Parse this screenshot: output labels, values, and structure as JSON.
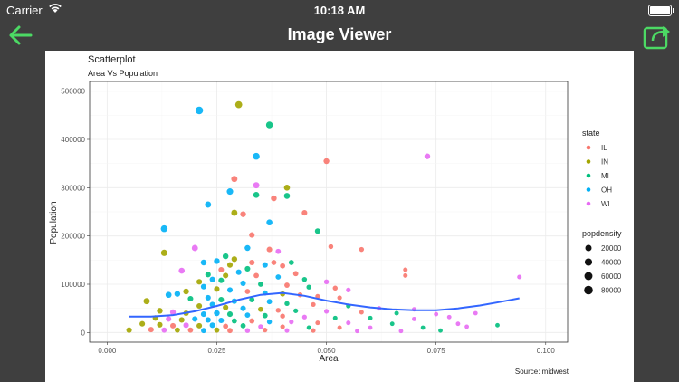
{
  "status_bar": {
    "carrier": "Carrier",
    "time": "10:18 AM"
  },
  "nav": {
    "title": "Image Viewer",
    "back_icon": "arrow-left-icon",
    "share_icon": "share-icon",
    "accent": "#4cd964"
  },
  "chart_data": {
    "type": "scatter",
    "title": "Scatterplot",
    "subtitle": "Area Vs Population",
    "xlabel": "Area",
    "ylabel": "Population",
    "caption": "Source: midwest",
    "xlim": [
      -0.004,
      0.105
    ],
    "ylim": [
      -20000,
      520000
    ],
    "xticks": [
      0.0,
      0.025,
      0.05,
      0.075,
      0.1
    ],
    "xtick_labels": [
      "0.000",
      "0.025",
      "0.050",
      "0.075",
      "0.100"
    ],
    "yticks": [
      0,
      100000,
      200000,
      300000,
      400000,
      500000
    ],
    "ytick_labels": [
      "0",
      "100000",
      "200000",
      "300000",
      "400000",
      "500000"
    ],
    "grid": true,
    "legend": {
      "position": "right",
      "color_title": "state",
      "states": [
        {
          "name": "IL",
          "color": "#f8766d"
        },
        {
          "name": "IN",
          "color": "#a3a500"
        },
        {
          "name": "MI",
          "color": "#00bf7d"
        },
        {
          "name": "OH",
          "color": "#00b0f6"
        },
        {
          "name": "WI",
          "color": "#e76bf3"
        }
      ],
      "size_title": "popdensity",
      "sizes": [
        {
          "label": "20000",
          "value": 20000
        },
        {
          "label": "40000",
          "value": 40000
        },
        {
          "label": "60000",
          "value": 60000
        },
        {
          "label": "80000",
          "value": 80000
        }
      ]
    },
    "points": [
      {
        "x": 0.021,
        "y": 460000,
        "s": "OH",
        "d": 80000
      },
      {
        "x": 0.03,
        "y": 472000,
        "s": "IN",
        "d": 60000
      },
      {
        "x": 0.037,
        "y": 430000,
        "s": "MI",
        "d": 55000
      },
      {
        "x": 0.034,
        "y": 365000,
        "s": "OH",
        "d": 55000
      },
      {
        "x": 0.073,
        "y": 365000,
        "s": "WI",
        "d": 30000
      },
      {
        "x": 0.05,
        "y": 355000,
        "s": "IL",
        "d": 30000
      },
      {
        "x": 0.029,
        "y": 318000,
        "s": "IL",
        "d": 40000
      },
      {
        "x": 0.034,
        "y": 305000,
        "s": "WI",
        "d": 40000
      },
      {
        "x": 0.041,
        "y": 300000,
        "s": "IN",
        "d": 35000
      },
      {
        "x": 0.028,
        "y": 292000,
        "s": "OH",
        "d": 45000
      },
      {
        "x": 0.034,
        "y": 285000,
        "s": "MI",
        "d": 35000
      },
      {
        "x": 0.041,
        "y": 283000,
        "s": "MI",
        "d": 35000
      },
      {
        "x": 0.038,
        "y": 278000,
        "s": "IL",
        "d": 30000
      },
      {
        "x": 0.023,
        "y": 265000,
        "s": "OH",
        "d": 40000
      },
      {
        "x": 0.029,
        "y": 248000,
        "s": "IN",
        "d": 40000
      },
      {
        "x": 0.045,
        "y": 248000,
        "s": "IL",
        "d": 25000
      },
      {
        "x": 0.031,
        "y": 245000,
        "s": "IL",
        "d": 30000
      },
      {
        "x": 0.037,
        "y": 228000,
        "s": "OH",
        "d": 35000
      },
      {
        "x": 0.013,
        "y": 215000,
        "s": "OH",
        "d": 55000
      },
      {
        "x": 0.048,
        "y": 210000,
        "s": "MI",
        "d": 25000
      },
      {
        "x": 0.033,
        "y": 202000,
        "s": "IL",
        "d": 25000
      },
      {
        "x": 0.051,
        "y": 178000,
        "s": "IL",
        "d": 15000
      },
      {
        "x": 0.02,
        "y": 175000,
        "s": "WI",
        "d": 40000
      },
      {
        "x": 0.058,
        "y": 172000,
        "s": "IL",
        "d": 15000
      },
      {
        "x": 0.013,
        "y": 165000,
        "s": "IN",
        "d": 45000
      },
      {
        "x": 0.032,
        "y": 175000,
        "s": "OH",
        "d": 30000
      },
      {
        "x": 0.037,
        "y": 172000,
        "s": "IL",
        "d": 25000
      },
      {
        "x": 0.039,
        "y": 168000,
        "s": "WI",
        "d": 20000
      },
      {
        "x": 0.027,
        "y": 158000,
        "s": "MI",
        "d": 30000
      },
      {
        "x": 0.029,
        "y": 152000,
        "s": "IN",
        "d": 30000
      },
      {
        "x": 0.033,
        "y": 145000,
        "s": "IL",
        "d": 25000
      },
      {
        "x": 0.036,
        "y": 140000,
        "s": "OH",
        "d": 25000
      },
      {
        "x": 0.028,
        "y": 140000,
        "s": "IN",
        "d": 25000
      },
      {
        "x": 0.038,
        "y": 145000,
        "s": "IL",
        "d": 20000
      },
      {
        "x": 0.042,
        "y": 145000,
        "s": "MI",
        "d": 20000
      },
      {
        "x": 0.04,
        "y": 138000,
        "s": "IL",
        "d": 20000
      },
      {
        "x": 0.032,
        "y": 132000,
        "s": "MI",
        "d": 25000
      },
      {
        "x": 0.025,
        "y": 148000,
        "s": "OH",
        "d": 30000
      },
      {
        "x": 0.022,
        "y": 145000,
        "s": "OH",
        "d": 30000
      },
      {
        "x": 0.026,
        "y": 130000,
        "s": "IL",
        "d": 25000
      },
      {
        "x": 0.03,
        "y": 125000,
        "s": "OH",
        "d": 25000
      },
      {
        "x": 0.017,
        "y": 128000,
        "s": "WI",
        "d": 35000
      },
      {
        "x": 0.023,
        "y": 120000,
        "s": "MI",
        "d": 25000
      },
      {
        "x": 0.027,
        "y": 118000,
        "s": "IN",
        "d": 25000
      },
      {
        "x": 0.034,
        "y": 118000,
        "s": "IL",
        "d": 20000
      },
      {
        "x": 0.039,
        "y": 115000,
        "s": "OH",
        "d": 20000
      },
      {
        "x": 0.043,
        "y": 122000,
        "s": "IL",
        "d": 20000
      },
      {
        "x": 0.045,
        "y": 110000,
        "s": "MI",
        "d": 15000
      },
      {
        "x": 0.05,
        "y": 105000,
        "s": "WI",
        "d": 15000
      },
      {
        "x": 0.024,
        "y": 110000,
        "s": "OH",
        "d": 25000
      },
      {
        "x": 0.021,
        "y": 105000,
        "s": "IN",
        "d": 25000
      },
      {
        "x": 0.026,
        "y": 108000,
        "s": "MI",
        "d": 25000
      },
      {
        "x": 0.031,
        "y": 102000,
        "s": "OH",
        "d": 25000
      },
      {
        "x": 0.035,
        "y": 100000,
        "s": "MI",
        "d": 20000
      },
      {
        "x": 0.041,
        "y": 98000,
        "s": "IL",
        "d": 20000
      },
      {
        "x": 0.046,
        "y": 94000,
        "s": "MI",
        "d": 15000
      },
      {
        "x": 0.052,
        "y": 92000,
        "s": "IL",
        "d": 15000
      },
      {
        "x": 0.055,
        "y": 88000,
        "s": "WI",
        "d": 12000
      },
      {
        "x": 0.068,
        "y": 130000,
        "s": "IL",
        "d": 10000
      },
      {
        "x": 0.068,
        "y": 118000,
        "s": "IL",
        "d": 10000
      },
      {
        "x": 0.094,
        "y": 115000,
        "s": "WI",
        "d": 10000
      },
      {
        "x": 0.018,
        "y": 85000,
        "s": "IN",
        "d": 30000
      },
      {
        "x": 0.016,
        "y": 80000,
        "s": "OH",
        "d": 30000
      },
      {
        "x": 0.014,
        "y": 78000,
        "s": "OH",
        "d": 35000
      },
      {
        "x": 0.009,
        "y": 65000,
        "s": "IN",
        "d": 40000
      },
      {
        "x": 0.022,
        "y": 95000,
        "s": "OH",
        "d": 25000
      },
      {
        "x": 0.025,
        "y": 90000,
        "s": "IN",
        "d": 25000
      },
      {
        "x": 0.028,
        "y": 88000,
        "s": "OH",
        "d": 25000
      },
      {
        "x": 0.032,
        "y": 85000,
        "s": "IL",
        "d": 20000
      },
      {
        "x": 0.036,
        "y": 82000,
        "s": "OH",
        "d": 20000
      },
      {
        "x": 0.04,
        "y": 80000,
        "s": "IN",
        "d": 20000
      },
      {
        "x": 0.044,
        "y": 78000,
        "s": "IL",
        "d": 15000
      },
      {
        "x": 0.048,
        "y": 75000,
        "s": "IL",
        "d": 12000
      },
      {
        "x": 0.053,
        "y": 72000,
        "s": "IL",
        "d": 12000
      },
      {
        "x": 0.019,
        "y": 70000,
        "s": "MI",
        "d": 25000
      },
      {
        "x": 0.023,
        "y": 72000,
        "s": "OH",
        "d": 25000
      },
      {
        "x": 0.026,
        "y": 68000,
        "s": "MI",
        "d": 25000
      },
      {
        "x": 0.029,
        "y": 65000,
        "s": "OH",
        "d": 25000
      },
      {
        "x": 0.033,
        "y": 68000,
        "s": "MI",
        "d": 20000
      },
      {
        "x": 0.037,
        "y": 64000,
        "s": "OH",
        "d": 20000
      },
      {
        "x": 0.041,
        "y": 60000,
        "s": "MI",
        "d": 15000
      },
      {
        "x": 0.047,
        "y": 58000,
        "s": "IL",
        "d": 12000
      },
      {
        "x": 0.055,
        "y": 55000,
        "s": "MI",
        "d": 12000
      },
      {
        "x": 0.062,
        "y": 50000,
        "s": "WI",
        "d": 10000
      },
      {
        "x": 0.07,
        "y": 48000,
        "s": "WI",
        "d": 10000
      },
      {
        "x": 0.021,
        "y": 55000,
        "s": "IN",
        "d": 25000
      },
      {
        "x": 0.024,
        "y": 58000,
        "s": "OH",
        "d": 25000
      },
      {
        "x": 0.027,
        "y": 52000,
        "s": "IN",
        "d": 25000
      },
      {
        "x": 0.031,
        "y": 50000,
        "s": "OH",
        "d": 25000
      },
      {
        "x": 0.035,
        "y": 48000,
        "s": "IN",
        "d": 20000
      },
      {
        "x": 0.039,
        "y": 46000,
        "s": "IL",
        "d": 15000
      },
      {
        "x": 0.043,
        "y": 45000,
        "s": "MI",
        "d": 12000
      },
      {
        "x": 0.05,
        "y": 44000,
        "s": "WI",
        "d": 12000
      },
      {
        "x": 0.058,
        "y": 42000,
        "s": "IL",
        "d": 10000
      },
      {
        "x": 0.066,
        "y": 40000,
        "s": "MI",
        "d": 10000
      },
      {
        "x": 0.075,
        "y": 38000,
        "s": "WI",
        "d": 8000
      },
      {
        "x": 0.084,
        "y": 40000,
        "s": "WI",
        "d": 8000
      },
      {
        "x": 0.012,
        "y": 45000,
        "s": "IN",
        "d": 30000
      },
      {
        "x": 0.015,
        "y": 42000,
        "s": "WI",
        "d": 30000
      },
      {
        "x": 0.018,
        "y": 40000,
        "s": "IN",
        "d": 25000
      },
      {
        "x": 0.022,
        "y": 38000,
        "s": "OH",
        "d": 25000
      },
      {
        "x": 0.025,
        "y": 40000,
        "s": "OH",
        "d": 30000
      },
      {
        "x": 0.028,
        "y": 38000,
        "s": "MI",
        "d": 25000
      },
      {
        "x": 0.032,
        "y": 36000,
        "s": "OH",
        "d": 20000
      },
      {
        "x": 0.036,
        "y": 35000,
        "s": "MI",
        "d": 20000
      },
      {
        "x": 0.04,
        "y": 34000,
        "s": "IL",
        "d": 15000
      },
      {
        "x": 0.045,
        "y": 32000,
        "s": "WI",
        "d": 12000
      },
      {
        "x": 0.052,
        "y": 30000,
        "s": "MI",
        "d": 10000
      },
      {
        "x": 0.06,
        "y": 30000,
        "s": "MI",
        "d": 10000
      },
      {
        "x": 0.07,
        "y": 28000,
        "s": "WI",
        "d": 8000
      },
      {
        "x": 0.078,
        "y": 32000,
        "s": "WI",
        "d": 8000
      },
      {
        "x": 0.011,
        "y": 30000,
        "s": "IN",
        "d": 25000
      },
      {
        "x": 0.014,
        "y": 28000,
        "s": "WI",
        "d": 25000
      },
      {
        "x": 0.017,
        "y": 26000,
        "s": "IN",
        "d": 25000
      },
      {
        "x": 0.02,
        "y": 28000,
        "s": "OH",
        "d": 25000
      },
      {
        "x": 0.023,
        "y": 26000,
        "s": "OH",
        "d": 25000
      },
      {
        "x": 0.026,
        "y": 25000,
        "s": "OH",
        "d": 25000
      },
      {
        "x": 0.029,
        "y": 24000,
        "s": "MI",
        "d": 20000
      },
      {
        "x": 0.033,
        "y": 24000,
        "s": "IL",
        "d": 20000
      },
      {
        "x": 0.037,
        "y": 22000,
        "s": "OH",
        "d": 15000
      },
      {
        "x": 0.042,
        "y": 22000,
        "s": "WI",
        "d": 12000
      },
      {
        "x": 0.048,
        "y": 20000,
        "s": "IL",
        "d": 10000
      },
      {
        "x": 0.055,
        "y": 20000,
        "s": "WI",
        "d": 10000
      },
      {
        "x": 0.065,
        "y": 18000,
        "s": "MI",
        "d": 8000
      },
      {
        "x": 0.08,
        "y": 18000,
        "s": "WI",
        "d": 8000
      },
      {
        "x": 0.089,
        "y": 15000,
        "s": "MI",
        "d": 8000
      },
      {
        "x": 0.008,
        "y": 18000,
        "s": "IN",
        "d": 25000
      },
      {
        "x": 0.012,
        "y": 16000,
        "s": "IN",
        "d": 25000
      },
      {
        "x": 0.015,
        "y": 14000,
        "s": "IL",
        "d": 25000
      },
      {
        "x": 0.018,
        "y": 15000,
        "s": "WI",
        "d": 25000
      },
      {
        "x": 0.021,
        "y": 14000,
        "s": "IN",
        "d": 25000
      },
      {
        "x": 0.024,
        "y": 15000,
        "s": "OH",
        "d": 25000
      },
      {
        "x": 0.027,
        "y": 13000,
        "s": "IL",
        "d": 20000
      },
      {
        "x": 0.031,
        "y": 14000,
        "s": "MI",
        "d": 20000
      },
      {
        "x": 0.035,
        "y": 12000,
        "s": "WI",
        "d": 15000
      },
      {
        "x": 0.04,
        "y": 12000,
        "s": "IL",
        "d": 12000
      },
      {
        "x": 0.046,
        "y": 10000,
        "s": "MI",
        "d": 10000
      },
      {
        "x": 0.053,
        "y": 10000,
        "s": "IL",
        "d": 10000
      },
      {
        "x": 0.06,
        "y": 10000,
        "s": "WI",
        "d": 8000
      },
      {
        "x": 0.072,
        "y": 10000,
        "s": "MI",
        "d": 8000
      },
      {
        "x": 0.082,
        "y": 12000,
        "s": "WI",
        "d": 8000
      },
      {
        "x": 0.005,
        "y": 5000,
        "s": "IN",
        "d": 25000
      },
      {
        "x": 0.01,
        "y": 6000,
        "s": "IL",
        "d": 25000
      },
      {
        "x": 0.013,
        "y": 5000,
        "s": "WI",
        "d": 20000
      },
      {
        "x": 0.016,
        "y": 5000,
        "s": "IN",
        "d": 20000
      },
      {
        "x": 0.019,
        "y": 5000,
        "s": "IL",
        "d": 20000
      },
      {
        "x": 0.022,
        "y": 4000,
        "s": "OH",
        "d": 20000
      },
      {
        "x": 0.025,
        "y": 5000,
        "s": "IN",
        "d": 20000
      },
      {
        "x": 0.028,
        "y": 4000,
        "s": "IL",
        "d": 20000
      },
      {
        "x": 0.032,
        "y": 4000,
        "s": "WI",
        "d": 15000
      },
      {
        "x": 0.036,
        "y": 5000,
        "s": "IL",
        "d": 12000
      },
      {
        "x": 0.041,
        "y": 4000,
        "s": "WI",
        "d": 10000
      },
      {
        "x": 0.047,
        "y": 4000,
        "s": "IL",
        "d": 10000
      },
      {
        "x": 0.057,
        "y": 3000,
        "s": "WI",
        "d": 8000
      },
      {
        "x": 0.067,
        "y": 3000,
        "s": "WI",
        "d": 8000
      },
      {
        "x": 0.076,
        "y": 4000,
        "s": "MI",
        "d": 8000
      }
    ],
    "smooth": [
      {
        "x": 0.005,
        "y": 33000
      },
      {
        "x": 0.01,
        "y": 33000
      },
      {
        "x": 0.015,
        "y": 36000
      },
      {
        "x": 0.02,
        "y": 44000
      },
      {
        "x": 0.025,
        "y": 55000
      },
      {
        "x": 0.03,
        "y": 68000
      },
      {
        "x": 0.035,
        "y": 78000
      },
      {
        "x": 0.04,
        "y": 82000
      },
      {
        "x": 0.045,
        "y": 76000
      },
      {
        "x": 0.05,
        "y": 66000
      },
      {
        "x": 0.055,
        "y": 58000
      },
      {
        "x": 0.06,
        "y": 52000
      },
      {
        "x": 0.065,
        "y": 48000
      },
      {
        "x": 0.07,
        "y": 46000
      },
      {
        "x": 0.075,
        "y": 46000
      },
      {
        "x": 0.08,
        "y": 50000
      },
      {
        "x": 0.085,
        "y": 56000
      },
      {
        "x": 0.09,
        "y": 64000
      },
      {
        "x": 0.094,
        "y": 71000
      }
    ],
    "smooth_color": "#3366ff"
  }
}
